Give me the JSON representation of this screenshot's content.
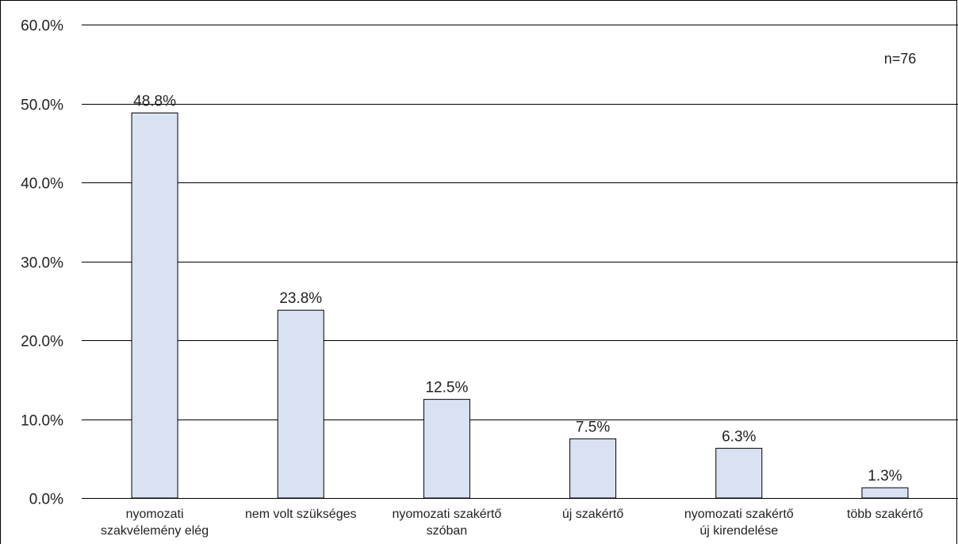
{
  "chart_data": {
    "type": "bar",
    "categories": [
      [
        "nyomozati",
        "szakvélemény elég"
      ],
      [
        "nem volt szükséges"
      ],
      [
        "nyomozati szakértő",
        "szóban"
      ],
      [
        "új szakértő"
      ],
      [
        "nyomozati szakértő",
        "új kirendelése"
      ],
      [
        "több szakértő"
      ]
    ],
    "values": [
      48.8,
      23.8,
      12.5,
      7.5,
      6.3,
      1.3
    ],
    "value_labels": [
      "48.8%",
      "23.8%",
      "12.5%",
      "7.5%",
      "6.3%",
      "1.3%"
    ],
    "ylim": [
      0,
      60
    ],
    "yticks": [
      0,
      10,
      20,
      30,
      40,
      50,
      60
    ],
    "ytick_labels": [
      "0.0%",
      "10.0%",
      "20.0%",
      "30.0%",
      "40.0%",
      "50.0%",
      "60.0%"
    ],
    "grid": true,
    "annotation": "n=76",
    "bar_color": "#d9e2f3",
    "bar_edge_color": "#000000",
    "grid_color": "#000000"
  }
}
